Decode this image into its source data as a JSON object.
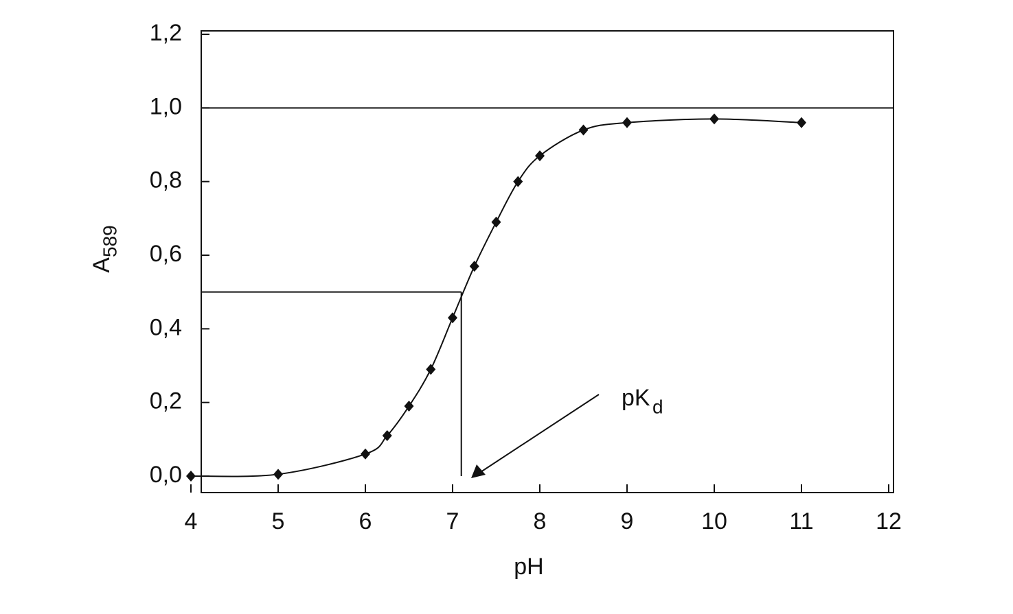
{
  "chart_data": {
    "type": "scatter",
    "x_label": "pH",
    "y_label": {
      "main": "A",
      "sub": "589"
    },
    "annotation": {
      "main": "pK",
      "sub": "d"
    },
    "series": [
      {
        "color": "#111111",
        "x": [
          4,
          5,
          6,
          6.25,
          6.5,
          6.75,
          7,
          7.25,
          7.5,
          7.75,
          8,
          8.5,
          9,
          10,
          11
        ],
        "values": [
          0,
          0.005,
          0.06,
          0.11,
          0.19,
          0.29,
          0.43,
          0.57,
          0.69,
          0.8,
          0.87,
          0.94,
          0.96,
          0.97,
          0.96
        ]
      }
    ],
    "hlines": [
      1.0,
      0.5
    ],
    "vline": 7.1,
    "xlim": [
      4,
      12
    ],
    "ylim": [
      0,
      1.2
    ],
    "xticks": [
      4,
      5,
      6,
      7,
      8,
      9,
      10,
      11,
      12
    ],
    "yticks": [
      {
        "value": 0,
        "label": "0,0"
      },
      {
        "value": 0.2,
        "label": "0,2"
      },
      {
        "value": 0.4,
        "label": "0,4"
      },
      {
        "value": 0.6,
        "label": "0,6"
      },
      {
        "value": 0.8,
        "label": "0,8"
      },
      {
        "value": 1.0,
        "label": "1,0"
      },
      {
        "value": 1.2,
        "label": "1,2"
      }
    ]
  }
}
